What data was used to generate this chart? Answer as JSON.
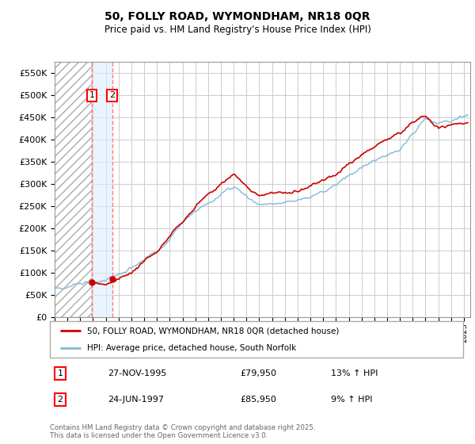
{
  "title_line1": "50, FOLLY ROAD, WYMONDHAM, NR18 0QR",
  "title_line2": "Price paid vs. HM Land Registry's House Price Index (HPI)",
  "ytick_values": [
    0,
    50000,
    100000,
    150000,
    200000,
    250000,
    300000,
    350000,
    400000,
    450000,
    500000,
    550000
  ],
  "ylim": [
    0,
    575000
  ],
  "xlim_start": 1993.0,
  "xlim_end": 2025.5,
  "hpi_color": "#7db8d8",
  "price_color": "#cc0000",
  "grid_color": "#cccccc",
  "purchase1_date": 1995.9,
  "purchase2_date": 1997.5,
  "purchase1_price": 79950,
  "purchase2_price": 85950,
  "legend_line1": "50, FOLLY ROAD, WYMONDHAM, NR18 0QR (detached house)",
  "legend_line2": "HPI: Average price, detached house, South Norfolk",
  "table_row1": [
    "1",
    "27-NOV-1995",
    "£79,950",
    "13% ↑ HPI"
  ],
  "table_row2": [
    "2",
    "24-JUN-1997",
    "£85,950",
    "9% ↑ HPI"
  ],
  "footer": "Contains HM Land Registry data © Crown copyright and database right 2025.\nThis data is licensed under the Open Government Licence v3.0.",
  "hatch_end": 1995.9
}
